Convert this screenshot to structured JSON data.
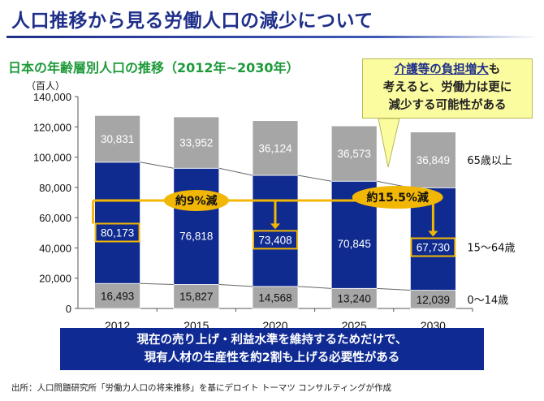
{
  "header": {
    "title": "人口推移から見る労働人口の減少について"
  },
  "callout": {
    "highlight": "介護等の負担増大",
    "rest_line1": "も",
    "line2": "考えると、労働力は更に",
    "line3": "減少する可能性がある"
  },
  "bottom_message": {
    "line1": "現在の売り上げ・利益水準を維持するためだけで、",
    "line2": "現有人材の生産性を約2割も上げる必要性がある"
  },
  "source": "出所：人口問題研究所「労働力人口の将来推移」を基にデロイト トーマツ コンサルティングが作成",
  "colors": {
    "title": "#1f2f8a",
    "subtitle": "#1e9a3a",
    "bar_young": "#a6a6a6",
    "bar_working": "#102b8f",
    "bar_elderly": "#a6a6a6",
    "accent_gold": "#f2b705",
    "callout_bg": "#fbfba0",
    "bottom_box": "#0f2a93"
  },
  "chart_data": {
    "type": "bar",
    "stacked": true,
    "title": "日本の年齢層別人口の推移（2012年~2030年）",
    "ylabel": "（百人）",
    "ylim": [
      0,
      140000
    ],
    "yticks": [
      "0",
      "20,000",
      "40,000",
      "60,000",
      "80,000",
      "100,000",
      "120,000",
      "140,000"
    ],
    "grid": false,
    "categories": [
      "2012",
      "2015",
      "2020",
      "2025",
      "2030"
    ],
    "series": [
      {
        "name": "0〜14歳",
        "values": [
          16493,
          15827,
          14568,
          13240,
          12039
        ],
        "labels": [
          "16,493",
          "15,827",
          "14,568",
          "13,240",
          "12,039"
        ]
      },
      {
        "name": "15〜64歳",
        "values": [
          80173,
          76818,
          73408,
          70845,
          67730
        ],
        "labels": [
          "80,173",
          "76,818",
          "73,408",
          "70,845",
          "67,730"
        ]
      },
      {
        "name": "65歳以上",
        "values": [
          30831,
          33952,
          36124,
          36573,
          36849
        ],
        "labels": [
          "30,831",
          "33,952",
          "36,124",
          "36,573",
          "36,849"
        ]
      }
    ],
    "annotations": [
      {
        "text": "約9%減",
        "from": "2012",
        "to": "2020"
      },
      {
        "text": "約15.5%減",
        "from": "2012",
        "to": "2030"
      }
    ],
    "highlighted_values": [
      "80,173",
      "73,408",
      "67,730"
    ]
  }
}
